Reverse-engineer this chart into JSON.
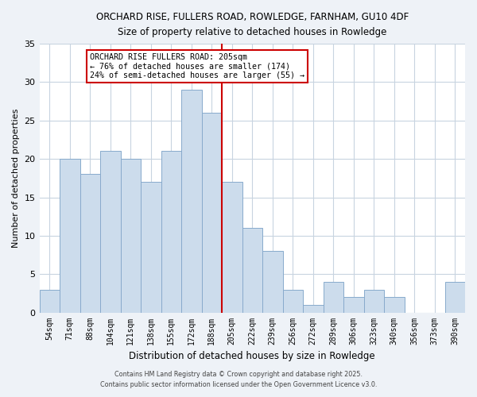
{
  "title": "ORCHARD RISE, FULLERS ROAD, ROWLEDGE, FARNHAM, GU10 4DF",
  "subtitle": "Size of property relative to detached houses in Rowledge",
  "xlabel": "Distribution of detached houses by size in Rowledge",
  "ylabel": "Number of detached properties",
  "bar_labels": [
    "54sqm",
    "71sqm",
    "88sqm",
    "104sqm",
    "121sqm",
    "138sqm",
    "155sqm",
    "172sqm",
    "188sqm",
    "205sqm",
    "222sqm",
    "239sqm",
    "256sqm",
    "272sqm",
    "289sqm",
    "306sqm",
    "323sqm",
    "340sqm",
    "356sqm",
    "373sqm",
    "390sqm"
  ],
  "bar_values": [
    3,
    20,
    18,
    21,
    20,
    17,
    21,
    29,
    26,
    17,
    11,
    8,
    3,
    1,
    4,
    2,
    3,
    2,
    0,
    0,
    4
  ],
  "bar_color": "#ccdcec",
  "bar_edge_color": "#88aacc",
  "ylim": [
    0,
    35
  ],
  "yticks": [
    0,
    5,
    10,
    15,
    20,
    25,
    30,
    35
  ],
  "annotation_title": "ORCHARD RISE FULLERS ROAD: 205sqm",
  "annotation_line1": "← 76% of detached houses are smaller (174)",
  "annotation_line2": "24% of semi-detached houses are larger (55) →",
  "footer1": "Contains HM Land Registry data © Crown copyright and database right 2025.",
  "footer2": "Contains public sector information licensed under the Open Government Licence v3.0.",
  "background_color": "#eef2f7",
  "plot_background_color": "#ffffff",
  "grid_color": "#c8d4e0",
  "vline_color": "#cc0000",
  "annotation_box_edge_color": "#cc0000"
}
